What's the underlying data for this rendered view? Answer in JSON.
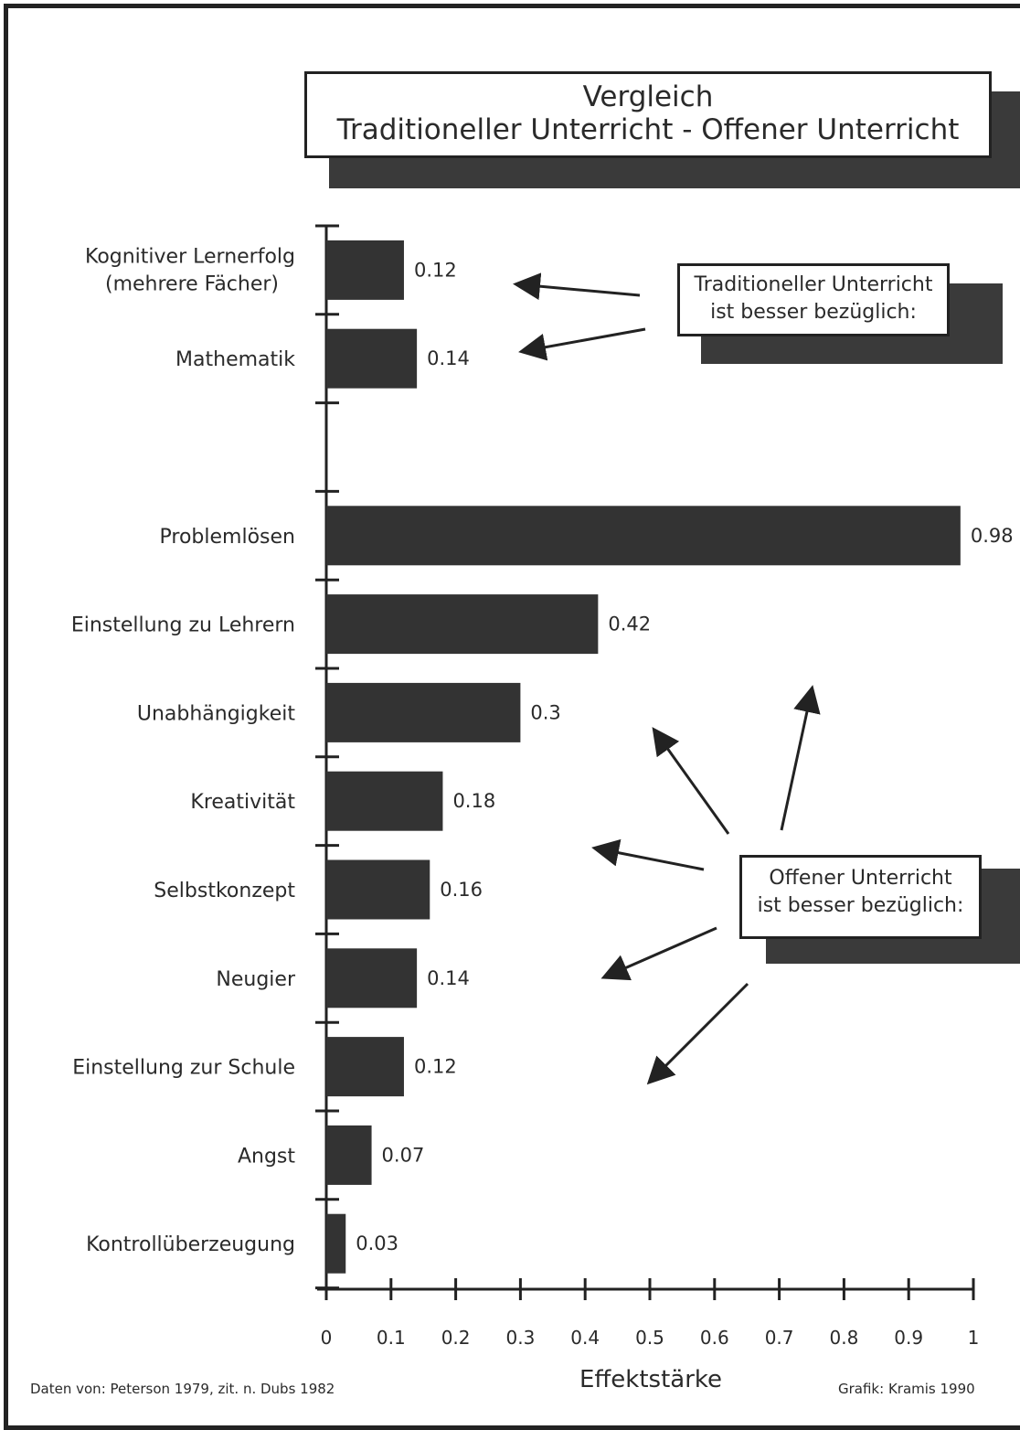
{
  "title": {
    "line1": "Vergleich",
    "line2": "Traditioneller Unterricht  -  Offener Unterricht"
  },
  "notes": {
    "traditional": "Traditioneller Unterricht\nist besser bezüglich:",
    "open": "Offener Unterricht\nist besser bezüglich:"
  },
  "footer": {
    "source": "Daten von: Peterson 1979, zit. n. Dubs 1982",
    "credit": "Grafik: Kramis 1990"
  },
  "colors": {
    "bar": "#333333",
    "shadow": "#3a3a3a",
    "ink": "#222222"
  },
  "chart_data": {
    "type": "bar",
    "orientation": "horizontal",
    "xlabel": "Effektstärke",
    "xlim": [
      0,
      1
    ],
    "xticks": [
      "0",
      "0.1",
      "0.2",
      "0.3",
      "0.4",
      "0.5",
      "0.6",
      "0.7",
      "0.8",
      "0.9",
      "1"
    ],
    "groups": [
      {
        "label": "Traditioneller Unterricht ist besser bezüglich:",
        "categories": [
          "Kognitiver Lernerfolg (mehrere Fächer)",
          "Mathematik"
        ],
        "values": [
          0.12,
          0.14
        ],
        "value_labels": [
          "0.12",
          "0.14"
        ]
      },
      {
        "label": "Offener Unterricht ist besser bezüglich:",
        "categories": [
          "Problemlösen",
          "Einstellung zu Lehrern",
          "Unabhängigkeit",
          "Kreativität",
          "Selbstkonzept",
          "Neugier",
          "Einstellung zur Schule",
          "Angst",
          "Kontrollüberzeugung"
        ],
        "values": [
          0.98,
          0.42,
          0.3,
          0.18,
          0.16,
          0.14,
          0.12,
          0.07,
          0.03
        ],
        "value_labels": [
          "0.98",
          "0.42",
          "0.3",
          "0.18",
          "0.16",
          "0.14",
          "0.12",
          "0.07",
          "0.03"
        ]
      }
    ],
    "grid": false
  }
}
